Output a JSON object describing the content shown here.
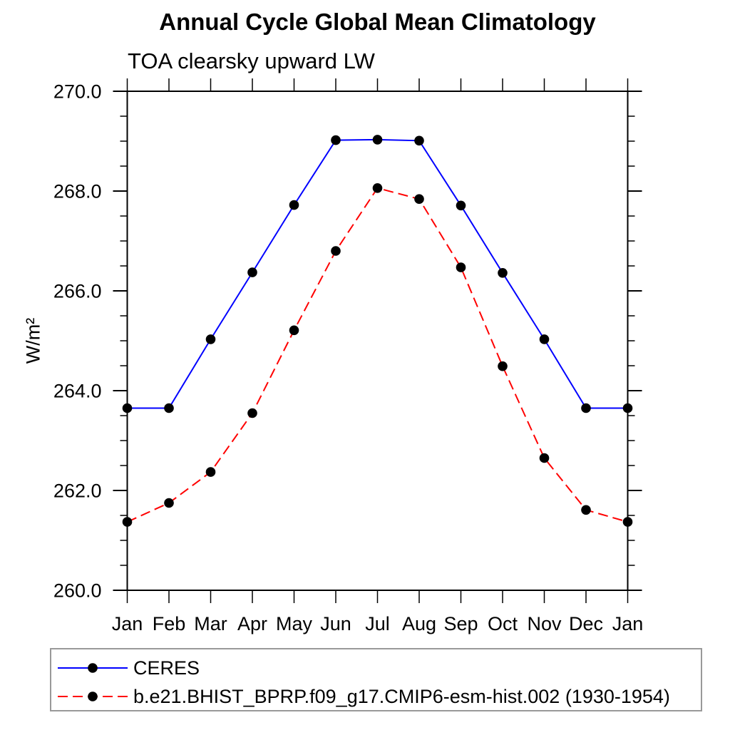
{
  "chart_data": {
    "type": "line",
    "title": "Annual Cycle Global Mean Climatology",
    "subtitle": "TOA clearsky upward LW",
    "ylabel": "W/m²",
    "xlabel": "",
    "categories": [
      "Jan",
      "Feb",
      "Mar",
      "Apr",
      "May",
      "Jun",
      "Jul",
      "Aug",
      "Sep",
      "Oct",
      "Nov",
      "Dec",
      "Jan"
    ],
    "series": [
      {
        "name": "CERES",
        "color": "#0000ff",
        "line_style": "solid",
        "dash": "",
        "values": [
          263.65,
          263.65,
          265.03,
          266.37,
          267.72,
          269.02,
          269.03,
          269.01,
          267.71,
          266.36,
          265.03,
          263.65,
          263.65
        ]
      },
      {
        "name": "b.e21.BHIST_BPRP.f09_g17.CMIP6-esm-hist.002 (1930-1954)",
        "color": "#ff0000",
        "line_style": "dashed",
        "dash": "14 7",
        "values": [
          261.37,
          261.75,
          262.37,
          263.55,
          265.21,
          266.8,
          268.06,
          267.84,
          266.47,
          264.49,
          262.65,
          261.61,
          261.37
        ]
      }
    ],
    "marker": {
      "shape": "circle",
      "color": "#000000",
      "radius": 6.8
    },
    "ylim": [
      260.0,
      270.0
    ],
    "y_major_step": 2.0,
    "y_minor_step": 0.5,
    "y_tick_labels": [
      "260.0",
      "262.0",
      "264.0",
      "266.0",
      "268.0",
      "270.0"
    ],
    "grid": false,
    "axis_color": "#000000",
    "legend_position": "bottom-left-box"
  }
}
